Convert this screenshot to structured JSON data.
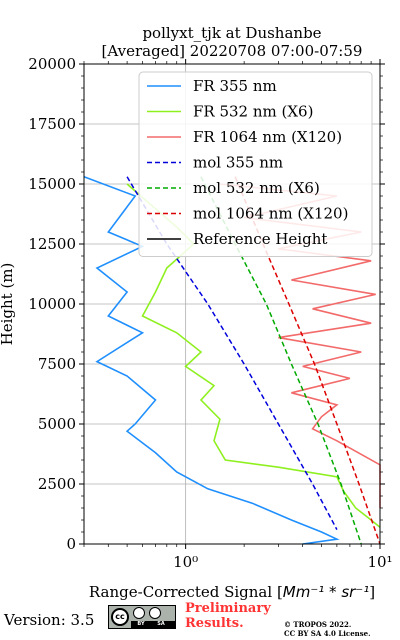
{
  "chart_data": {
    "type": "line",
    "title_line1": "pollyxt_tjk at Dushanbe",
    "title_line2": "[Averaged] 20220708 07:00-07:59",
    "xlabel_prefix": "Range-Corrected Signal [",
    "xlabel_unit": "Mm⁻¹ * sr⁻¹",
    "xlabel_suffix": "]",
    "ylabel": "Height (m)",
    "xscale": "log",
    "xlim": [
      0.3,
      10
    ],
    "ylim": [
      0,
      20000
    ],
    "yticks": [
      "0",
      "2500",
      "5000",
      "7500",
      "10000",
      "12500",
      "15000",
      "17500",
      "20000"
    ],
    "xticks": [
      "10⁰",
      "10¹"
    ],
    "grid": true,
    "legend_position": "top-right",
    "series": [
      {
        "name": "FR 355 nm",
        "color": "#1f8fff",
        "style": "solid",
        "points": [
          [
            0.3,
            15300
          ],
          [
            0.55,
            14500
          ],
          [
            0.4,
            13000
          ],
          [
            0.6,
            12400
          ],
          [
            0.35,
            11500
          ],
          [
            0.5,
            10500
          ],
          [
            0.4,
            9500
          ],
          [
            0.6,
            8800
          ],
          [
            0.35,
            7600
          ],
          [
            0.5,
            7000
          ],
          [
            0.7,
            6000
          ],
          [
            0.55,
            5000
          ],
          [
            0.5,
            4700
          ],
          [
            0.7,
            3800
          ],
          [
            0.9,
            3000
          ],
          [
            1.3,
            2300
          ],
          [
            2.2,
            1700
          ],
          [
            3.5,
            1000
          ],
          [
            5.0,
            500
          ],
          [
            6.0,
            200
          ],
          [
            4.0,
            0
          ]
        ]
      },
      {
        "name": "FR 532 nm (X6)",
        "color": "#8ff020",
        "style": "solid",
        "points": [
          [
            0.5,
            15000
          ],
          [
            0.9,
            13200
          ],
          [
            1.1,
            12500
          ],
          [
            0.8,
            11500
          ],
          [
            0.7,
            10500
          ],
          [
            0.6,
            9500
          ],
          [
            0.9,
            8800
          ],
          [
            1.2,
            8000
          ],
          [
            1.0,
            7400
          ],
          [
            1.4,
            6600
          ],
          [
            1.2,
            6000
          ],
          [
            1.5,
            5200
          ],
          [
            1.4,
            4300
          ],
          [
            1.6,
            3500
          ],
          [
            3.0,
            3200
          ],
          [
            6.0,
            2800
          ],
          [
            6.5,
            2200
          ],
          [
            7.5,
            1500
          ],
          [
            9.0,
            1000
          ],
          [
            10.0,
            700
          ]
        ]
      },
      {
        "name": "FR 1064 nm (X120)",
        "color": "#f36a6a",
        "style": "solid",
        "points": [
          [
            1.5,
            15000
          ],
          [
            6.0,
            14500
          ],
          [
            2.0,
            13600
          ],
          [
            8.0,
            13000
          ],
          [
            3.0,
            12300
          ],
          [
            9.0,
            11800
          ],
          [
            3.5,
            11000
          ],
          [
            9.5,
            10400
          ],
          [
            4.5,
            9800
          ],
          [
            9.0,
            9200
          ],
          [
            3.0,
            8600
          ],
          [
            8.0,
            8000
          ],
          [
            4.0,
            7400
          ],
          [
            7.0,
            6900
          ],
          [
            3.5,
            6300
          ],
          [
            6.0,
            5800
          ],
          [
            5.0,
            5300
          ],
          [
            4.5,
            4800
          ],
          [
            6.0,
            4300
          ],
          [
            10.0,
            3300
          ],
          [
            10.0,
            1500
          ]
        ]
      },
      {
        "name": "mol 355 nm",
        "color": "#0000dd",
        "style": "dashed",
        "points": [
          [
            0.5,
            15300
          ],
          [
            0.8,
            12500
          ],
          [
            1.3,
            10000
          ],
          [
            2.0,
            7500
          ],
          [
            3.0,
            5000
          ],
          [
            4.5,
            2500
          ],
          [
            6.0,
            600
          ]
        ]
      },
      {
        "name": "mol 532 nm (X6)",
        "color": "#00aa00",
        "style": "dashed",
        "points": [
          [
            1.2,
            15300
          ],
          [
            1.8,
            12500
          ],
          [
            2.6,
            10000
          ],
          [
            3.5,
            7500
          ],
          [
            4.8,
            5000
          ],
          [
            6.3,
            2500
          ],
          [
            8.0,
            0
          ]
        ]
      },
      {
        "name": "mol 1064 nm (X120)",
        "color": "#dd0000",
        "style": "dashed",
        "points": [
          [
            1.8,
            15300
          ],
          [
            2.5,
            12500
          ],
          [
            3.4,
            10000
          ],
          [
            4.6,
            7500
          ],
          [
            6.0,
            5000
          ],
          [
            7.8,
            2500
          ],
          [
            10.0,
            0
          ]
        ]
      },
      {
        "name": "Reference Height",
        "color": "#000000",
        "style": "solid",
        "points": []
      }
    ]
  },
  "footer": {
    "version": "Version: 3.5",
    "preliminary": "Preliminary\nResults.",
    "copyright_line1": "© TROPOS 2022.",
    "copyright_line2": "CC BY SA 4.0 License.",
    "cc_left": "BY",
    "cc_right": "SA"
  }
}
